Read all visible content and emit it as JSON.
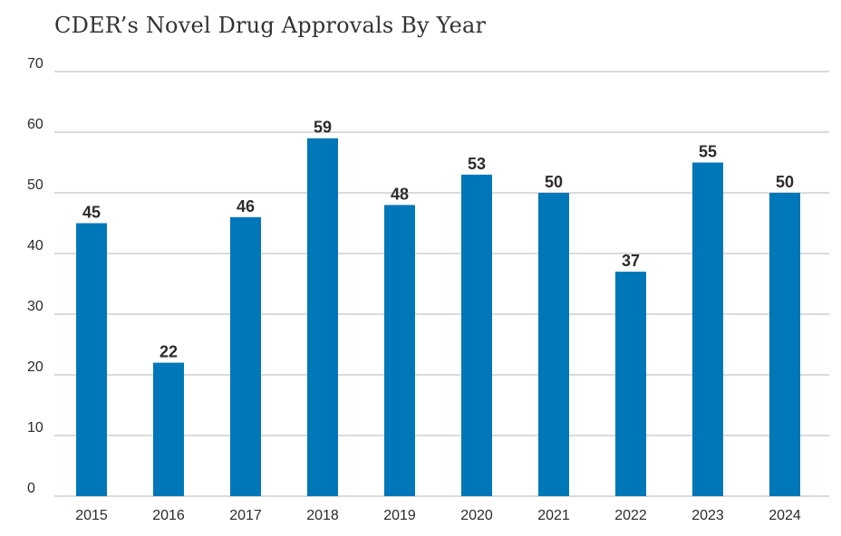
{
  "chart_data": {
    "type": "bar",
    "title": "CDER’s Novel Drug Approvals By Year",
    "xlabel": "",
    "ylabel": "",
    "categories": [
      "2015",
      "2016",
      "2017",
      "2018",
      "2019",
      "2020",
      "2021",
      "2022",
      "2023",
      "2024"
    ],
    "values": [
      45,
      22,
      46,
      59,
      48,
      53,
      50,
      37,
      55,
      50
    ],
    "ylim": [
      0,
      70
    ],
    "yticks": [
      0,
      10,
      20,
      30,
      40,
      50,
      60,
      70
    ],
    "grid": true,
    "legend": "none",
    "bar_color": "#0077b8",
    "grid_color": "#b5b5b5",
    "text_color": "#2b2b2b"
  }
}
